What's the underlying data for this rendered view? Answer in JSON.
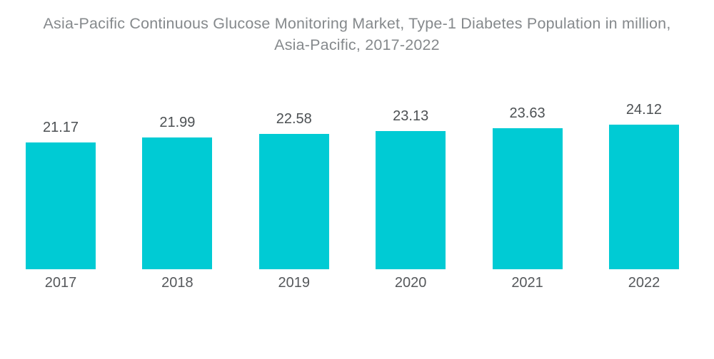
{
  "title": {
    "lines": [
      "Asia-Pacific Continuous Glucose Monitoring Market, Type-1 Diabetes Population in million,",
      "Asia-Pacific, 2017-2022"
    ]
  },
  "chart_data": {
    "type": "bar",
    "title": "Asia-Pacific Continuous Glucose Monitoring Market, Type-1 Diabetes Population in million, Asia-Pacific, 2017-2022",
    "categories": [
      "2017",
      "2018",
      "2019",
      "2020",
      "2021",
      "2022"
    ],
    "values": [
      21.17,
      21.99,
      22.58,
      23.13,
      23.63,
      24.12
    ],
    "value_labels": [
      "21.17",
      "21.99",
      "22.58",
      "23.13",
      "23.63",
      "24.12"
    ],
    "xlabel": "",
    "ylabel": "",
    "ylim": [
      0,
      24.12
    ],
    "grid": false,
    "legend": "none",
    "axes_shown": false,
    "colors": {
      "bar": "#00CBD4",
      "title_text": "#85898C",
      "value_label_text": "#4C5053",
      "axis_label_text": "#55585B",
      "background": "#FFFFFF"
    }
  }
}
